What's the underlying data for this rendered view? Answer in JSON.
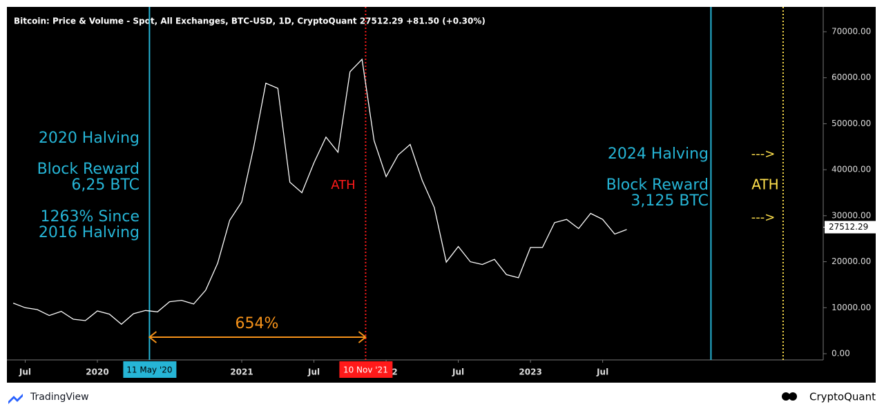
{
  "chart_data": {
    "type": "line",
    "title": "Bitcoin: Price & Volume - Spot, All Exchanges, BTC-USD, 1D, CryptoQuant  27512.29  +81.50 (+0.30%)",
    "x": [
      "2019-06",
      "2019-07",
      "2019-08",
      "2019-09",
      "2019-10",
      "2019-11",
      "2019-12",
      "2020-01",
      "2020-02",
      "2020-03",
      "2020-04",
      "2020-05",
      "2020-06",
      "2020-07",
      "2020-08",
      "2020-09",
      "2020-10",
      "2020-11",
      "2020-12",
      "2021-01",
      "2021-02",
      "2021-03",
      "2021-04",
      "2021-05",
      "2021-06",
      "2021-07",
      "2021-08",
      "2021-09",
      "2021-10",
      "2021-11",
      "2021-12",
      "2022-01",
      "2022-02",
      "2022-03",
      "2022-04",
      "2022-05",
      "2022-06",
      "2022-07",
      "2022-08",
      "2022-09",
      "2022-10",
      "2022-11",
      "2022-12",
      "2023-01",
      "2023-02",
      "2023-03",
      "2023-04",
      "2023-05",
      "2023-06",
      "2023-07",
      "2023-08",
      "2023-09"
    ],
    "series": [
      {
        "name": "BTC-USD",
        "color": "#ffffff",
        "values": [
          11000,
          10000,
          9600,
          8300,
          9200,
          7500,
          7200,
          9300,
          8600,
          6400,
          8700,
          9400,
          9100,
          11300,
          11600,
          10800,
          13800,
          19700,
          29000,
          33000,
          45000,
          58800,
          57700,
          37300,
          35000,
          41500,
          47100,
          43800,
          61300,
          64000,
          46300,
          38500,
          43200,
          45500,
          37700,
          31800,
          19900,
          23300,
          20000,
          19400,
          20500,
          17200,
          16500,
          23100,
          23100,
          28500,
          29200,
          27200,
          30500,
          29200,
          26000,
          27000
        ]
      }
    ],
    "last_value": {
      "value": 27512.29,
      "label": "27512.29"
    },
    "ylim": [
      -1350,
      75400
    ],
    "yticks": [
      {
        "value": 0,
        "label": "0.00"
      },
      {
        "value": 10000,
        "label": "10000.00"
      },
      {
        "value": 20000,
        "label": "20000.00"
      },
      {
        "value": 30000,
        "label": "30000.00"
      },
      {
        "value": 40000,
        "label": "40000.00"
      },
      {
        "value": 50000,
        "label": "50000.00"
      },
      {
        "value": 60000,
        "label": "60000.00"
      },
      {
        "value": 70000,
        "label": "70000.00"
      }
    ],
    "xticks": [
      {
        "value": "2019-07",
        "label": "Jul"
      },
      {
        "value": "2020-01",
        "label": "2020"
      },
      {
        "value": "2021-01",
        "label": "2021"
      },
      {
        "value": "2021-07",
        "label": "Jul"
      },
      {
        "value": "2022-01",
        "label": "2022"
      },
      {
        "value": "2022-07",
        "label": "Jul"
      },
      {
        "value": "2023-01",
        "label": "2023"
      },
      {
        "value": "2023-07",
        "label": "Jul"
      }
    ],
    "vlines": [
      {
        "x": "2020-05-11",
        "label": "11 May '20",
        "color": "#26b5d6",
        "style": "solid"
      },
      {
        "x": "2021-11-10",
        "label": "10 Nov '21",
        "color": "#ff1a1a",
        "style": "dotted"
      },
      {
        "x": "2024-04",
        "color": "#26b5d6",
        "style": "solid"
      },
      {
        "x": "2024-10",
        "color": "#ffe14d",
        "style": "dotted"
      }
    ],
    "annotations": [
      {
        "lines": [
          "2020 Halving"
        ],
        "color": "#26b5d6"
      },
      {
        "lines": [
          "Block Reward",
          "6,25 BTC"
        ],
        "color": "#26b5d6"
      },
      {
        "lines": [
          "1263% Since",
          "2016 Halving"
        ],
        "color": "#26b5d6"
      },
      {
        "lines": [
          "ATH"
        ],
        "color": "#ff1a1a"
      },
      {
        "lines": [
          "654%"
        ],
        "color": "#f7931a"
      },
      {
        "lines": [
          "2024 Halving"
        ],
        "color": "#26b5d6"
      },
      {
        "lines": [
          "Block Reward",
          "3,125 BTC"
        ],
        "color": "#26b5d6"
      },
      {
        "lines": [
          "--->"
        ],
        "color": "#ffe14d"
      },
      {
        "lines": [
          "ATH"
        ],
        "color": "#ffe14d"
      },
      {
        "lines": [
          "--->"
        ],
        "color": "#ffe14d"
      }
    ],
    "footer": {
      "left": "TradingView",
      "right": "CryptoQuant"
    }
  }
}
